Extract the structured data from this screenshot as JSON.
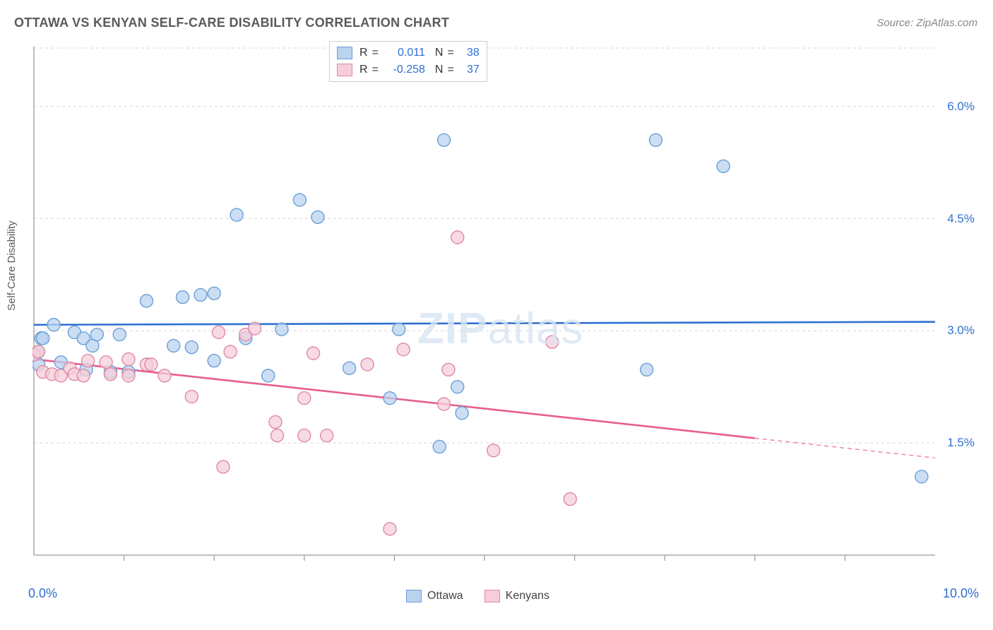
{
  "title": "OTTAWA VS KENYAN SELF-CARE DISABILITY CORRELATION CHART",
  "source_label": "Source:",
  "source_value": "ZipAtlas.com",
  "y_axis_label": "Self-Care Disability",
  "watermark": {
    "bold": "ZIP",
    "rest": "atlas"
  },
  "chart": {
    "type": "scatter",
    "xlim": [
      0,
      10
    ],
    "ylim": [
      0,
      6.8
    ],
    "x_ticks_minor": [
      1,
      2,
      3,
      4,
      5,
      6,
      7,
      8,
      9
    ],
    "x_tick_labels": {
      "0": "0.0%",
      "10": "10.0%"
    },
    "y_gridlines": [
      1.5,
      3.0,
      4.5,
      6.0
    ],
    "y_tick_labels": {
      "1.5": "1.5%",
      "3.0": "3.0%",
      "4.5": "4.5%",
      "6.0": "6.0%"
    },
    "background_color": "#ffffff",
    "grid_color": "#d8d8d8",
    "axis_color": "#9a9a9a",
    "tick_color": "#9a9a9a",
    "marker_radius": 9,
    "marker_stroke_width": 1.4,
    "trend_line_width": 2.6,
    "x_label_color": "#2f6fd0",
    "y_label_color": "#2f6fd0",
    "series": {
      "ottawa": {
        "label": "Ottawa",
        "fill": "#b9d3ef",
        "stroke": "#6a9fd8",
        "line_color": "#2f6fd0",
        "R": "0.011",
        "N": "38",
        "trend": {
          "x1": 0,
          "y1": 3.08,
          "x2": 10,
          "y2": 3.12,
          "solid_until": 10
        },
        "points": [
          [
            0.05,
            2.55
          ],
          [
            0.05,
            2.72
          ],
          [
            0.08,
            2.9
          ],
          [
            0.1,
            2.9
          ],
          [
            0.22,
            3.08
          ],
          [
            0.3,
            2.58
          ],
          [
            0.45,
            2.98
          ],
          [
            0.55,
            2.9
          ],
          [
            0.58,
            2.48
          ],
          [
            0.65,
            2.8
          ],
          [
            0.7,
            2.95
          ],
          [
            0.85,
            2.45
          ],
          [
            0.95,
            2.95
          ],
          [
            1.05,
            2.45
          ],
          [
            1.25,
            3.4
          ],
          [
            1.55,
            2.8
          ],
          [
            1.65,
            3.45
          ],
          [
            1.75,
            2.78
          ],
          [
            1.85,
            3.48
          ],
          [
            2.0,
            3.5
          ],
          [
            2.0,
            2.6
          ],
          [
            2.25,
            4.55
          ],
          [
            2.35,
            2.9
          ],
          [
            2.6,
            2.4
          ],
          [
            2.75,
            3.02
          ],
          [
            2.95,
            4.75
          ],
          [
            3.15,
            4.52
          ],
          [
            3.5,
            2.5
          ],
          [
            3.95,
            2.1
          ],
          [
            4.05,
            3.02
          ],
          [
            4.5,
            1.45
          ],
          [
            4.55,
            5.55
          ],
          [
            4.7,
            2.25
          ],
          [
            4.75,
            1.9
          ],
          [
            6.9,
            5.55
          ],
          [
            6.8,
            2.48
          ],
          [
            7.65,
            5.2
          ],
          [
            9.85,
            1.05
          ]
        ]
      },
      "kenyans": {
        "label": "Kenyans",
        "fill": "#f6cdd9",
        "stroke": "#df89a3",
        "line_color": "#e85e89",
        "R": "-0.258",
        "N": "37",
        "trend": {
          "x1": 0,
          "y1": 2.62,
          "x2": 10,
          "y2": 1.3,
          "solid_until": 8.0
        },
        "points": [
          [
            0.0,
            2.68
          ],
          [
            0.05,
            2.72
          ],
          [
            0.1,
            2.45
          ],
          [
            0.2,
            2.42
          ],
          [
            0.3,
            2.4
          ],
          [
            0.4,
            2.5
          ],
          [
            0.45,
            2.42
          ],
          [
            0.55,
            2.4
          ],
          [
            0.6,
            2.6
          ],
          [
            0.8,
            2.58
          ],
          [
            0.85,
            2.42
          ],
          [
            1.05,
            2.62
          ],
          [
            1.05,
            2.4
          ],
          [
            1.25,
            2.55
          ],
          [
            1.3,
            2.55
          ],
          [
            1.45,
            2.4
          ],
          [
            1.75,
            2.12
          ],
          [
            2.05,
            2.98
          ],
          [
            2.1,
            1.18
          ],
          [
            2.18,
            2.72
          ],
          [
            2.35,
            2.95
          ],
          [
            2.45,
            3.03
          ],
          [
            2.68,
            1.78
          ],
          [
            2.7,
            1.6
          ],
          [
            3.0,
            2.1
          ],
          [
            3.0,
            1.6
          ],
          [
            3.1,
            2.7
          ],
          [
            3.25,
            1.6
          ],
          [
            3.7,
            2.55
          ],
          [
            3.95,
            0.35
          ],
          [
            4.1,
            2.75
          ],
          [
            4.55,
            2.02
          ],
          [
            4.6,
            2.48
          ],
          [
            4.7,
            4.25
          ],
          [
            5.1,
            1.4
          ],
          [
            5.75,
            2.85
          ],
          [
            5.95,
            0.75
          ]
        ]
      }
    },
    "legend_top": {
      "r_label": "R",
      "n_label": "N",
      "eq": "="
    },
    "legend_bottom": {
      "items": [
        "ottawa",
        "kenyans"
      ]
    }
  }
}
